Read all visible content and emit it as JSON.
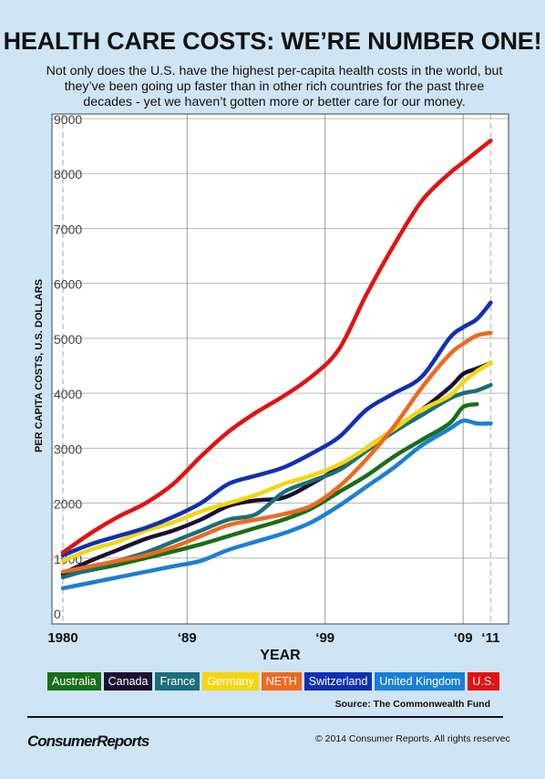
{
  "header": {
    "title": "HEALTH CARE COSTS: WE’RE NUMBER ONE!",
    "subtitle": "Not only does the U.S. have the highest per-capita health costs in the world, but they’ve been going up faster than in other rich countries for the past three decades - yet we haven’t gotten more or better care for our money."
  },
  "footer": {
    "source": "Source: The Commonwealth Fund",
    "logo": "ConsumerReports",
    "copyright": "© 2014 Consumer Reports. All rights reservec"
  },
  "chart_data": {
    "type": "line",
    "xlabel": "YEAR",
    "ylabel": "PER CAPITA COSTS, U.S. DOLLARS",
    "xlim": [
      1980,
      2011.5
    ],
    "ylim": [
      0,
      9000
    ],
    "grid": true,
    "y_ticks": [
      {
        "value": 0,
        "label": "0"
      },
      {
        "value": 1000,
        "label": "1000"
      },
      {
        "value": 2000,
        "label": "2000"
      },
      {
        "value": 3000,
        "label": "3000"
      },
      {
        "value": 4000,
        "label": "4000"
      },
      {
        "value": 5000,
        "label": "5000"
      },
      {
        "value": 6000,
        "label": "6000"
      },
      {
        "value": 7000,
        "label": "7000"
      },
      {
        "value": 8000,
        "label": "8000"
      },
      {
        "value": 9000,
        "label": "9000"
      }
    ],
    "x_ticks": [
      {
        "value": 1980,
        "label": "1980"
      },
      {
        "value": 1989,
        "label": "‘89"
      },
      {
        "value": 1999,
        "label": "‘99"
      },
      {
        "value": 2009,
        "label": "‘09"
      },
      {
        "value": 2011,
        "label": "‘11"
      }
    ],
    "legend_placement": "bottom",
    "x": [
      1980,
      1982,
      1984,
      1986,
      1988,
      1990,
      1992,
      1994,
      1996,
      1998,
      2000,
      2002,
      2004,
      2006,
      2008,
      2009,
      2010,
      2011
    ],
    "series": [
      {
        "name": "Australia",
        "color": "#1a6e1a",
        "values": [
          680,
          780,
          880,
          1000,
          1120,
          1250,
          1400,
          1550,
          1700,
          1900,
          2200,
          2500,
          2850,
          3150,
          3450,
          3750,
          3800,
          null
        ]
      },
      {
        "name": "Canada",
        "color": "#1b1030",
        "values": [
          720,
          950,
          1150,
          1350,
          1500,
          1700,
          1950,
          2050,
          2100,
          2350,
          2650,
          3000,
          3350,
          3700,
          4100,
          4350,
          4450,
          4550
        ]
      },
      {
        "name": "France",
        "color": "#1b6e7a",
        "values": [
          650,
          800,
          950,
          1100,
          1300,
          1500,
          1700,
          1800,
          2200,
          2400,
          2600,
          2950,
          3300,
          3600,
          3900,
          4000,
          4050,
          4150
        ]
      },
      {
        "name": "Germany",
        "color": "#f5d60e",
        "values": [
          950,
          1150,
          1300,
          1500,
          1650,
          1850,
          2000,
          2150,
          2350,
          2500,
          2700,
          3000,
          3350,
          3700,
          3950,
          4200,
          4400,
          4550
        ]
      },
      {
        "name": "NETH",
        "color": "#ee6a1e",
        "values": [
          750,
          850,
          950,
          1050,
          1200,
          1400,
          1600,
          1700,
          1800,
          1950,
          2300,
          2800,
          3400,
          4100,
          4700,
          4900,
          5050,
          5100
        ]
      },
      {
        "name": "Switzerland",
        "color": "#1030b4",
        "values": [
          1050,
          1250,
          1400,
          1550,
          1750,
          2000,
          2350,
          2500,
          2650,
          2900,
          3200,
          3700,
          4000,
          4300,
          5000,
          5200,
          5350,
          5650
        ]
      },
      {
        "name": "United Kingdom",
        "color": "#1a7fd6",
        "values": [
          450,
          550,
          650,
          750,
          850,
          950,
          1150,
          1300,
          1450,
          1650,
          1950,
          2300,
          2650,
          3050,
          3350,
          3500,
          3450,
          3450
        ]
      },
      {
        "name": "U.S.",
        "color": "#e21212",
        "values": [
          1100,
          1450,
          1750,
          2000,
          2350,
          2850,
          3300,
          3650,
          3950,
          4300,
          4800,
          5800,
          6700,
          7500,
          8000,
          8200,
          8400,
          8600
        ]
      }
    ]
  }
}
